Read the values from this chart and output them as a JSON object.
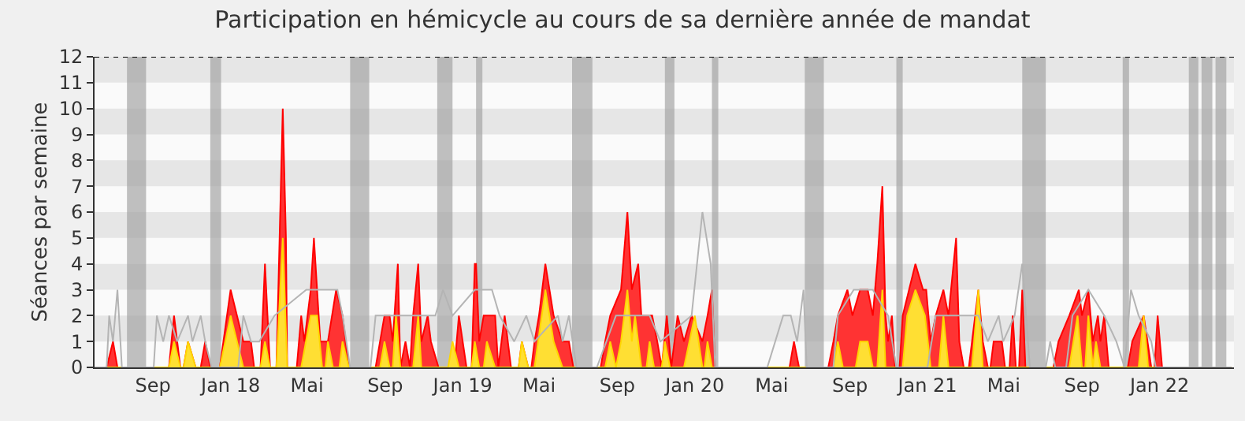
{
  "chart_data": {
    "type": "area",
    "title": "Participation en hémicycle au cours de sa dernière année de mandat",
    "ylabel": "Séances par semaine",
    "xlim": [
      "2017-06-01",
      "2022-04-28"
    ],
    "ylim": [
      0,
      12
    ],
    "yticks": [
      0,
      1,
      2,
      3,
      4,
      5,
      6,
      7,
      8,
      9,
      10,
      11,
      12
    ],
    "xticks": [
      {
        "value": "2017-09-01",
        "label": "Sep"
      },
      {
        "value": "2018-01-01",
        "label": "Jan 18"
      },
      {
        "value": "2018-05-01",
        "label": "Mai"
      },
      {
        "value": "2018-09-01",
        "label": "Sep"
      },
      {
        "value": "2019-01-01",
        "label": "Jan 19"
      },
      {
        "value": "2019-05-01",
        "label": "Mai"
      },
      {
        "value": "2019-09-01",
        "label": "Sep"
      },
      {
        "value": "2020-01-01",
        "label": "Jan 20"
      },
      {
        "value": "2020-05-01",
        "label": "Mai"
      },
      {
        "value": "2020-09-01",
        "label": "Sep"
      },
      {
        "value": "2021-01-01",
        "label": "Jan 21"
      },
      {
        "value": "2021-05-01",
        "label": "Mai"
      },
      {
        "value": "2021-09-01",
        "label": "Sep"
      },
      {
        "value": "2022-01-01",
        "label": "Jan 22"
      }
    ],
    "grid": false,
    "marker": "none",
    "series": [
      {
        "type": "line",
        "color": "#b4b4b4",
        "x": [
          "2017-06-01",
          "2017-06-20",
          "2017-06-24",
          "2017-06-30",
          "2017-07-07",
          "2017-07-14",
          "2017-09-02",
          "2017-09-07",
          "2017-09-17",
          "2017-09-26",
          "2017-10-09",
          "2017-10-26",
          "2017-11-02",
          "2017-11-15",
          "2017-11-22",
          "2017-12-02",
          "2018-01-13",
          "2018-01-21",
          "2018-02-02",
          "2018-02-15",
          "2018-03-11",
          "2018-04-30",
          "2018-06-18",
          "2018-06-26",
          "2018-07-08",
          "2018-08-09",
          "2018-08-17",
          "2018-09-25",
          "2018-11-19",
          "2018-12-01",
          "2018-12-16",
          "2019-01-20",
          "2019-02-16",
          "2019-02-28",
          "2019-03-23",
          "2019-04-11",
          "2019-04-24",
          "2019-05-31",
          "2019-06-07",
          "2019-06-17",
          "2019-06-29",
          "2019-07-31",
          "2019-08-30",
          "2019-10-22",
          "2019-11-08",
          "2019-12-27",
          "2020-01-13",
          "2020-01-26",
          "2020-02-02",
          "2020-04-24",
          "2020-05-19",
          "2020-05-31",
          "2020-06-10",
          "2020-06-20",
          "2020-06-25",
          "2020-08-06",
          "2020-08-13",
          "2020-09-07",
          "2020-10-07",
          "2020-10-31",
          "2020-11-13",
          "2021-01-01",
          "2021-01-14",
          "2021-03-22",
          "2021-04-06",
          "2021-04-23",
          "2021-04-30",
          "2021-05-18",
          "2021-05-30",
          "2021-06-11",
          "2021-07-06",
          "2021-07-13",
          "2021-07-21",
          "2021-08-07",
          "2021-08-17",
          "2021-09-11",
          "2021-10-06",
          "2021-10-25",
          "2021-11-07",
          "2021-11-17",
          "2021-11-29",
          "2021-12-19",
          "2021-12-26",
          "2022-04-24"
        ],
        "values": [
          0,
          0,
          2,
          1,
          3,
          0,
          0,
          2,
          1,
          2,
          1,
          2,
          1,
          2,
          1,
          0,
          0,
          2,
          1,
          1,
          2,
          3,
          3,
          2,
          0,
          0,
          2,
          2,
          2,
          3,
          2,
          3,
          3,
          2,
          1,
          2,
          1,
          2,
          1,
          2,
          0,
          0,
          2,
          2,
          1,
          2,
          6,
          4,
          0,
          0,
          2,
          2,
          1,
          3,
          0,
          0,
          2,
          3,
          3,
          2,
          0,
          0,
          2,
          2,
          1,
          2,
          1,
          2,
          4,
          0,
          0,
          1,
          0,
          0,
          2,
          3,
          2,
          1,
          0,
          3,
          2,
          1,
          0,
          0
        ]
      },
      {
        "color": "#ff0000",
        "x": [
          "2017-06-01",
          "2017-06-20",
          "2017-06-30",
          "2017-07-07",
          "2017-09-26",
          "2017-10-04",
          "2017-10-14",
          "2017-10-19",
          "2017-10-26",
          "2017-11-07",
          "2017-11-15",
          "2017-11-22",
          "2017-11-30",
          "2017-12-15",
          "2018-01-01",
          "2018-01-21",
          "2018-02-02",
          "2018-02-07",
          "2018-02-17",
          "2018-02-24",
          "2018-03-04",
          "2018-03-14",
          "2018-03-19",
          "2018-03-24",
          "2018-03-29",
          "2018-03-31",
          "2018-04-15",
          "2018-04-22",
          "2018-04-27",
          "2018-05-07",
          "2018-05-12",
          "2018-05-17",
          "2018-05-22",
          "2018-06-03",
          "2018-06-16",
          "2018-06-26",
          "2018-07-06",
          "2018-08-17",
          "2018-08-24",
          "2018-08-31",
          "2018-09-08",
          "2018-09-13",
          "2018-09-21",
          "2018-09-25",
          "2018-10-03",
          "2018-10-10",
          "2018-10-15",
          "2018-10-23",
          "2018-10-28",
          "2018-11-07",
          "2018-11-12",
          "2018-11-24",
          "2018-12-19",
          "2018-12-26",
          "2019-01-07",
          "2019-01-15",
          "2019-01-20",
          "2019-01-22",
          "2019-01-27",
          "2019-02-03",
          "2019-02-21",
          "2019-02-26",
          "2019-03-08",
          "2019-03-18",
          "2019-03-30",
          "2019-04-04",
          "2019-04-14",
          "2019-04-19",
          "2019-04-24",
          "2019-05-01",
          "2019-05-11",
          "2019-05-24",
          "2019-06-07",
          "2019-06-17",
          "2019-06-24",
          "2019-08-06",
          "2019-08-13",
          "2019-08-21",
          "2019-09-07",
          "2019-09-17",
          "2019-09-24",
          "2019-10-04",
          "2019-10-09",
          "2019-10-26",
          "2019-11-03",
          "2019-11-10",
          "2019-11-18",
          "2019-11-25",
          "2019-12-05",
          "2019-12-15",
          "2019-12-27",
          "2020-01-13",
          "2020-01-21",
          "2020-01-28",
          "2020-02-02",
          "2020-05-29",
          "2020-06-05",
          "2020-06-13",
          "2020-07-29",
          "2020-08-06",
          "2020-08-13",
          "2020-08-28",
          "2020-09-05",
          "2020-09-17",
          "2020-09-29",
          "2020-10-07",
          "2020-10-14",
          "2020-10-22",
          "2020-10-27",
          "2020-10-31",
          "2020-11-06",
          "2020-11-11",
          "2020-11-18",
          "2020-11-23",
          "2020-12-03",
          "2020-12-13",
          "2020-12-25",
          "2020-12-30",
          "2021-01-06",
          "2021-01-14",
          "2021-01-26",
          "2021-02-03",
          "2021-02-15",
          "2021-02-20",
          "2021-02-27",
          "2021-03-07",
          "2021-03-12",
          "2021-03-22",
          "2021-03-29",
          "2021-04-06",
          "2021-04-10",
          "2021-04-15",
          "2021-04-28",
          "2021-05-03",
          "2021-05-10",
          "2021-05-15",
          "2021-05-20",
          "2021-05-25",
          "2021-05-30",
          "2021-06-04",
          "2021-07-18",
          "2021-07-26",
          "2021-08-12",
          "2021-08-27",
          "2021-09-01",
          "2021-09-11",
          "2021-09-18",
          "2021-09-26",
          "2021-09-30",
          "2021-10-06",
          "2021-10-13",
          "2021-11-12",
          "2021-11-19",
          "2021-12-07",
          "2021-12-19",
          "2021-12-24",
          "2021-12-29",
          "2022-01-05",
          "2022-04-24"
        ],
        "values": [
          0,
          0,
          1,
          0,
          0,
          2,
          0,
          0,
          1,
          0,
          0,
          1,
          0,
          0,
          3,
          1,
          1,
          0,
          0,
          4,
          0,
          0,
          5,
          10,
          5,
          0,
          0,
          2,
          1,
          3,
          5,
          3,
          1,
          1,
          3,
          2,
          0,
          0,
          1,
          2,
          2,
          1,
          4,
          0,
          1,
          0,
          2,
          4,
          1,
          2,
          1,
          0,
          0,
          2,
          0,
          0,
          4,
          4,
          1,
          2,
          2,
          0,
          2,
          0,
          0,
          1,
          0,
          0,
          1,
          2,
          4,
          2,
          1,
          1,
          0,
          0,
          1,
          2,
          3,
          6,
          3,
          4,
          2,
          2,
          1,
          0,
          2,
          0,
          2,
          1,
          2,
          1,
          2,
          3,
          0,
          0,
          1,
          0,
          0,
          1,
          2,
          3,
          2,
          3,
          3,
          2,
          4,
          7,
          2,
          1,
          2,
          0,
          0,
          2,
          3,
          4,
          3,
          3,
          1,
          2,
          3,
          2,
          5,
          1,
          0,
          0,
          1,
          3,
          1,
          0,
          0,
          1,
          1,
          0,
          0,
          2,
          0,
          0,
          3,
          0,
          0,
          1,
          2,
          3,
          2,
          3,
          1,
          2,
          1,
          2,
          0,
          0,
          1,
          2,
          0,
          0,
          2,
          0,
          0
        ]
      },
      {
        "color": "#ffd700",
        "x": [
          "2017-06-01",
          "2017-09-26",
          "2017-10-04",
          "2017-10-14",
          "2017-10-19",
          "2017-10-26",
          "2017-11-07",
          "2017-12-15",
          "2018-01-01",
          "2018-01-21",
          "2018-02-17",
          "2018-02-24",
          "2018-03-04",
          "2018-03-14",
          "2018-03-24",
          "2018-03-31",
          "2018-04-22",
          "2018-05-07",
          "2018-05-17",
          "2018-05-25",
          "2018-05-30",
          "2018-06-03",
          "2018-06-11",
          "2018-06-21",
          "2018-06-26",
          "2018-07-06",
          "2018-08-24",
          "2018-08-31",
          "2018-09-08",
          "2018-09-13",
          "2018-09-18",
          "2018-09-25",
          "2018-10-15",
          "2018-10-23",
          "2018-10-28",
          "2018-12-09",
          "2018-12-16",
          "2018-12-26",
          "2019-01-15",
          "2019-01-20",
          "2019-01-27",
          "2019-02-03",
          "2019-02-08",
          "2019-02-21",
          "2019-03-30",
          "2019-04-04",
          "2019-04-14",
          "2019-04-24",
          "2019-05-11",
          "2019-05-24",
          "2019-06-07",
          "2019-08-13",
          "2019-08-21",
          "2019-08-30",
          "2019-09-07",
          "2019-09-17",
          "2019-09-24",
          "2019-09-29",
          "2019-10-09",
          "2019-10-17",
          "2019-10-22",
          "2019-10-29",
          "2019-11-10",
          "2019-11-15",
          "2019-11-23",
          "2019-12-15",
          "2020-01-01",
          "2020-01-13",
          "2020-01-16",
          "2020-01-21",
          "2020-01-28",
          "2020-08-06",
          "2020-08-13",
          "2020-08-21",
          "2020-09-10",
          "2020-09-17",
          "2020-09-29",
          "2020-10-07",
          "2020-10-14",
          "2020-10-22",
          "2020-10-27",
          "2020-11-23",
          "2020-11-30",
          "2020-12-13",
          "2020-12-28",
          "2021-01-06",
          "2021-01-19",
          "2021-01-26",
          "2021-02-03",
          "2021-03-12",
          "2021-03-22",
          "2021-03-29",
          "2021-08-12",
          "2021-08-25",
          "2021-09-01",
          "2021-09-06",
          "2021-09-11",
          "2021-09-18",
          "2021-09-23",
          "2021-09-30",
          "2021-11-29",
          "2021-12-07",
          "2021-12-14",
          "2022-04-24"
        ],
        "values": [
          0,
          0,
          1,
          0,
          0,
          1,
          0,
          0,
          2,
          0,
          0,
          1,
          0,
          0,
          5,
          0,
          0,
          2,
          2,
          0,
          0,
          1,
          0,
          0,
          1,
          0,
          0,
          1,
          0,
          0,
          2,
          0,
          0,
          2,
          0,
          0,
          1,
          0,
          0,
          1,
          0,
          0,
          1,
          0,
          0,
          1,
          0,
          0,
          3,
          1,
          0,
          0,
          1,
          0,
          1,
          3,
          1,
          2,
          0,
          0,
          1,
          0,
          0,
          1,
          0,
          0,
          2,
          0,
          0,
          1,
          0,
          0,
          1,
          0,
          0,
          1,
          1,
          0,
          0,
          3,
          0,
          0,
          2,
          3,
          2,
          0,
          0,
          2,
          0,
          0,
          3,
          0,
          0,
          2,
          0,
          0,
          2,
          0,
          1,
          0,
          0,
          2,
          0,
          0
        ]
      }
    ],
    "ref_lines": [
      {
        "axis": "y",
        "value": 12,
        "color": "#000000",
        "line_style": "dotted"
      }
    ],
    "bands": [
      {
        "axis": "y",
        "from": 1,
        "to": 2,
        "color": "#e6e6e6"
      },
      {
        "axis": "y",
        "from": 3,
        "to": 4,
        "color": "#e6e6e6"
      },
      {
        "axis": "y",
        "from": 5,
        "to": 6,
        "color": "#e6e6e6"
      },
      {
        "axis": "y",
        "from": 7,
        "to": 8,
        "color": "#e6e6e6"
      },
      {
        "axis": "y",
        "from": 9,
        "to": 10,
        "color": "#e6e6e6"
      },
      {
        "axis": "y",
        "from": 11,
        "to": 12,
        "color": "#e6e6e6"
      },
      {
        "axis": "x",
        "from": "2017-07-22",
        "to": "2017-08-21",
        "color": "#a0a0a0"
      },
      {
        "axis": "x",
        "from": "2017-11-30",
        "to": "2017-12-17",
        "color": "#a0a0a0"
      },
      {
        "axis": "x",
        "from": "2018-07-08",
        "to": "2018-08-07",
        "color": "#a0a0a0"
      },
      {
        "axis": "x",
        "from": "2018-11-22",
        "to": "2018-12-16",
        "color": "#a0a0a0"
      },
      {
        "axis": "x",
        "from": "2019-01-22",
        "to": "2019-02-01",
        "color": "#a0a0a0"
      },
      {
        "axis": "x",
        "from": "2019-06-22",
        "to": "2019-07-24",
        "color": "#a0a0a0"
      },
      {
        "axis": "x",
        "from": "2019-11-15",
        "to": "2019-11-30",
        "color": "#a0a0a0"
      },
      {
        "axis": "x",
        "from": "2020-01-28",
        "to": "2020-02-07",
        "color": "#a0a0a0"
      },
      {
        "axis": "x",
        "from": "2020-06-22",
        "to": "2020-07-22",
        "color": "#a0a0a0"
      },
      {
        "axis": "x",
        "from": "2020-11-13",
        "to": "2020-11-23",
        "color": "#a0a0a0"
      },
      {
        "axis": "x",
        "from": "2021-05-30",
        "to": "2021-07-06",
        "color": "#a0a0a0"
      },
      {
        "axis": "x",
        "from": "2021-11-04",
        "to": "2021-11-14",
        "color": "#a0a0a0"
      },
      {
        "axis": "x",
        "from": "2022-02-16",
        "to": "2022-03-03",
        "color": "#a0a0a0"
      },
      {
        "axis": "x",
        "from": "2022-03-08",
        "to": "2022-03-25",
        "color": "#a0a0a0"
      },
      {
        "axis": "x",
        "from": "2022-03-30",
        "to": "2022-04-16",
        "color": "#a0a0a0"
      }
    ]
  }
}
